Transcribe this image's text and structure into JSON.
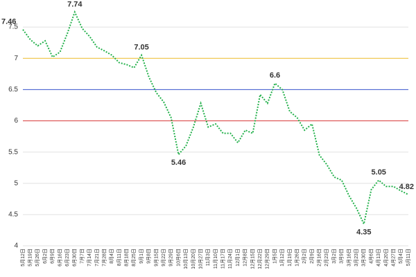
{
  "chart_data": {
    "type": "line",
    "categories": [
      "5月12日",
      "5月19日",
      "5月26日",
      "6月2日",
      "6月9日",
      "6月16日",
      "6月23日",
      "6月30日",
      "7月7日",
      "7月14日",
      "7月21日",
      "7月28日",
      "8月4日",
      "8月11日",
      "8月18日",
      "8月25日",
      "9月1日",
      "9月8日",
      "9月15日",
      "9月22日",
      "9月29日",
      "10月6日",
      "10月13日",
      "10月20日",
      "10月27日",
      "11月3日",
      "11月10日",
      "11月17日",
      "11月24日",
      "12月1日",
      "12月8日",
      "12月15日",
      "12月22日",
      "12月29日",
      "1月5日",
      "1月12日",
      "1月19日",
      "1月26日",
      "2月2日",
      "2月9日",
      "2月16日",
      "2月23日",
      "3月2日",
      "3月9日",
      "3月16日",
      "3月23日",
      "3月30日",
      "4月6日",
      "4月13日",
      "4月20日",
      "4月27日",
      "5月4日",
      "5月11日"
    ],
    "series": [
      {
        "color": "#22b04a",
        "values": [
          7.46,
          7.3,
          7.2,
          7.28,
          7.02,
          7.1,
          7.4,
          7.74,
          7.48,
          7.35,
          7.18,
          7.12,
          7.05,
          6.93,
          6.9,
          6.85,
          7.05,
          6.7,
          6.45,
          6.3,
          6.05,
          5.46,
          5.6,
          5.9,
          6.28,
          5.9,
          5.95,
          5.8,
          5.8,
          5.65,
          5.85,
          5.8,
          6.42,
          6.28,
          6.6,
          6.5,
          6.15,
          6.05,
          5.85,
          5.95,
          5.45,
          5.3,
          5.1,
          5.05,
          4.8,
          4.6,
          4.35,
          4.9,
          5.05,
          4.95,
          4.95,
          4.88,
          4.82
        ],
        "value_labels": [
          "7.46",
          null,
          null,
          null,
          null,
          null,
          null,
          "7.74",
          null,
          null,
          null,
          null,
          null,
          null,
          null,
          null,
          "7.05",
          null,
          null,
          null,
          null,
          "5.46",
          null,
          null,
          null,
          null,
          null,
          null,
          null,
          null,
          null,
          null,
          null,
          null,
          "6.6",
          null,
          null,
          null,
          null,
          null,
          null,
          null,
          null,
          null,
          null,
          null,
          "4.35",
          null,
          "5.05",
          null,
          null,
          null,
          "4.82"
        ]
      }
    ],
    "ylim": [
      4,
      7.9
    ],
    "yticks": [
      4,
      4.5,
      5,
      5.5,
      6,
      6.5,
      7,
      7.5
    ],
    "grid": true,
    "reference_lines": [
      {
        "value": 7,
        "color": "#f2c12e"
      },
      {
        "value": 6.5,
        "color": "#3a55d0"
      },
      {
        "value": 6,
        "color": "#d83a3a"
      }
    ]
  }
}
